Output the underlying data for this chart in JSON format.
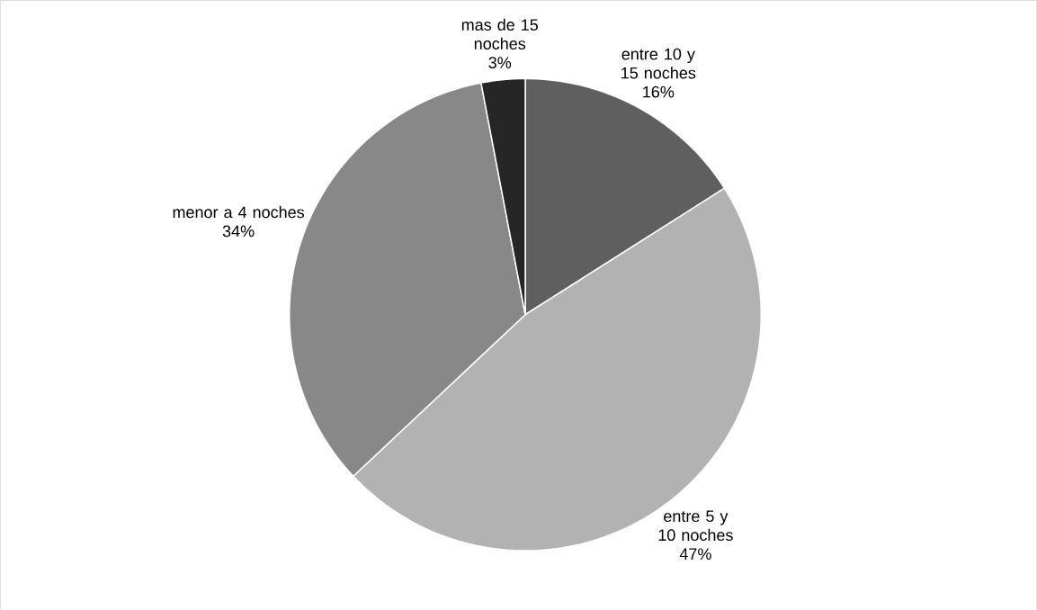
{
  "chart_data": {
    "type": "pie",
    "categories": [
      "entre 10 y 15 noches",
      "entre 5 y 10 noches",
      "menor a 4 noches",
      "mas de 15 noches"
    ],
    "values": [
      16,
      47,
      34,
      3
    ],
    "colors": [
      "#5f5f5f",
      "#b2b2b2",
      "#888888",
      "#262626"
    ],
    "value_labels": [
      "16%",
      "47%",
      "34%",
      "3%"
    ]
  }
}
